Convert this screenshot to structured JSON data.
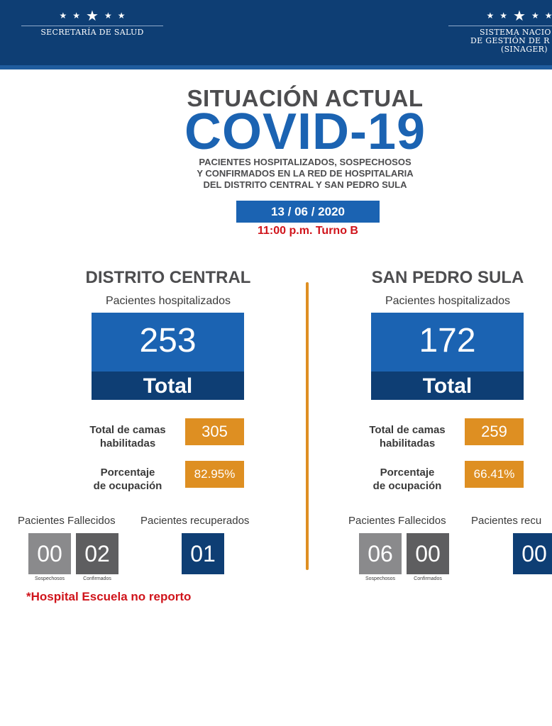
{
  "header": {
    "left_org": "SECRETARÍA DE SALUD",
    "right_org_line1": "SISTEMA NACIO",
    "right_org_line2": "DE GESTIÓN DE R",
    "right_org_line3": "(SINAGER)",
    "colors": {
      "navy": "#0e3e74",
      "accent_blue": "#1f5c9e"
    }
  },
  "title": {
    "line1": "SITUACIÓN ACTUAL",
    "line2": "COVID-19",
    "subtitle_line1": "PACIENTES HOSPITALIZADOS, SOSPECHOSOS",
    "subtitle_line2": "Y CONFIRMADOS EN LA RED DE HOSPITALARIA",
    "subtitle_line3": "DEL DISTRITO CENTRAL Y SAN PEDRO SULA",
    "date": "13 / 06 / 2020",
    "shift": "11:00 p.m. Turno B"
  },
  "regions": [
    {
      "name": "DISTRITO CENTRAL",
      "hosp_label": "Pacientes hospitalizados",
      "hospitalized": "253",
      "total_label": "Total",
      "beds_label_1": "Total de camas",
      "beds_label_2": "habilitadas",
      "beds": "305",
      "occupancy_label_1": "Porcentaje",
      "occupancy_label_2": "de ocupación",
      "occupancy": "82.95%",
      "deceased_label": "Pacientes Fallecidos",
      "recovered_label": "Pacientes recuperados",
      "deceased_suspected": "00",
      "deceased_confirmed": "02",
      "recovered": "01",
      "suspected_caption": "Sospechosos",
      "confirmed_caption": "Confirmados"
    },
    {
      "name": "SAN PEDRO SULA",
      "hosp_label": "Pacientes hospitalizados",
      "hospitalized": "172",
      "total_label": "Total",
      "beds_label_1": "Total de camas",
      "beds_label_2": "habilitadas",
      "beds": "259",
      "occupancy_label_1": "Porcentaje",
      "occupancy_label_2": "de ocupación",
      "occupancy": "66.41%",
      "deceased_label": "Pacientes Fallecidos",
      "recovered_label": "Pacientes recu",
      "deceased_suspected": "06",
      "deceased_confirmed": "00",
      "recovered": "00",
      "suspected_caption": "Sospechosos",
      "confirmed_caption": "Confirmados"
    }
  ],
  "note": "*Hospital Escuela no reporto",
  "colors": {
    "primary_blue": "#1b63b2",
    "orange": "#de8f22",
    "red": "#d0141b",
    "gray_text": "#4d4d4f"
  }
}
